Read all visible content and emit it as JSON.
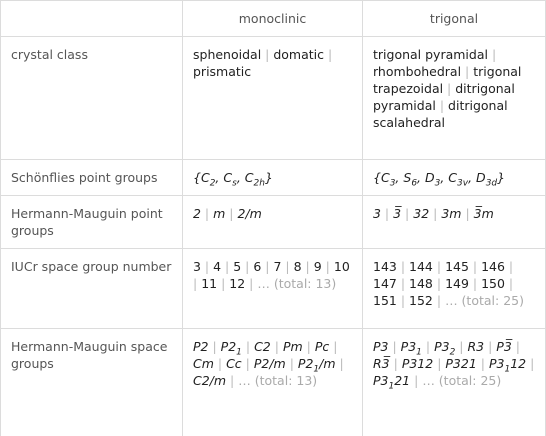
{
  "table": {
    "header": [
      "monoclinic",
      "trigonal"
    ],
    "rows": [
      {
        "label": "crystal class",
        "cells": [
          {
            "items": [
              "sphenoidal",
              "domatic",
              "prismatic"
            ]
          },
          {
            "items": [
              "trigonal pyramidal",
              "rhombohedral",
              "trigonal trapezoidal",
              "ditrigonal pyramidal",
              "ditrigonal scalahedral"
            ]
          }
        ]
      },
      {
        "label": "Schönflies point groups",
        "cells": [
          {
            "parts": [
              "{C",
              {
                "sub": "2"
              },
              ", C",
              {
                "sub": "s"
              },
              ", C",
              {
                "sub": "2h"
              },
              "}"
            ]
          },
          {
            "parts": [
              "{C",
              {
                "sub": "3"
              },
              ", S",
              {
                "sub": "6"
              },
              ", D",
              {
                "sub": "3"
              },
              ", C",
              {
                "sub": "3v"
              },
              ", D",
              {
                "sub": "3d"
              },
              "}"
            ]
          }
        ]
      },
      {
        "label": "Hermann-Mauguin point groups",
        "cells": [
          {
            "items": [
              "2",
              "m",
              "2/m"
            ]
          },
          {
            "items": [
              "3",
              "3̅",
              "32",
              "3m",
              "3̅m"
            ]
          }
        ]
      },
      {
        "label": "IUCr space group number",
        "cells": [
          {
            "items": [
              "3",
              "4",
              "5",
              "6",
              "7",
              "8",
              "9",
              "10",
              "11",
              "12"
            ],
            "more": "…",
            "note": "(total: 13)"
          },
          {
            "items": [
              "143",
              "144",
              "145",
              "146",
              "147",
              "148",
              "149",
              "150",
              "151",
              "152"
            ],
            "more": "…",
            "note": "(total: 25)"
          }
        ]
      },
      {
        "label": "Hermann-Mauguin space groups",
        "cells": [
          {
            "items": [
              "P2",
              {
                "parts": [
                  "P2",
                  {
                    "sub": "1"
                  }
                ]
              },
              "C2",
              "Pm",
              "Pc",
              "Cm",
              "Cc",
              "P2/m",
              {
                "parts": [
                  "P2",
                  {
                    "sub": "1"
                  },
                  "/m"
                ]
              },
              "C2/m"
            ],
            "more": "…",
            "note": "(total: 13)"
          },
          {
            "items": [
              "P3",
              {
                "parts": [
                  "P3",
                  {
                    "sub": "1"
                  }
                ]
              },
              {
                "parts": [
                  "P3",
                  {
                    "sub": "2"
                  }
                ]
              },
              "R3",
              "P3̅",
              "R3̅",
              "P312",
              "P321",
              {
                "parts": [
                  "P3",
                  {
                    "sub": "1"
                  },
                  "12"
                ]
              },
              {
                "parts": [
                  "P3",
                  {
                    "sub": "1"
                  },
                  "21"
                ]
              }
            ],
            "more": "…",
            "note": "(total: 25)"
          }
        ]
      }
    ]
  }
}
